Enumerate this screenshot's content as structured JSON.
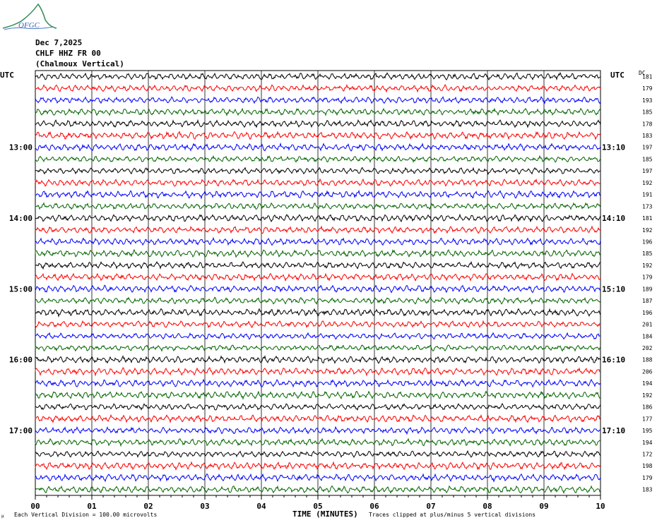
{
  "logo": {
    "text": "OFGC"
  },
  "header": {
    "date": "Dec 7,2025",
    "station": "CHLF HHZ FR 00",
    "location": "(Chalmoux Vertical)"
  },
  "left_label": "UTC",
  "right_label": "UTC",
  "dc_label": "DC",
  "footer": {
    "division": "Each Vertical Division =  100.00 microvolts",
    "xlabel": "TIME (MINUTES)",
    "clipping": "Traces clipped at plus/minus 5 vertical divisions",
    "corner_mark": "µ"
  },
  "colors": {
    "black": "#000000",
    "red": "#ff0000",
    "blue": "#0000ff",
    "green": "#006400",
    "grid": "#000000"
  },
  "chart_data": {
    "type": "line",
    "subtype": "helicorder",
    "x_ticks": [
      "00",
      "01",
      "02",
      "03",
      "04",
      "05",
      "06",
      "07",
      "08",
      "09",
      "10"
    ],
    "xlim": [
      0,
      10
    ],
    "left_hour_labels": [
      "13:00",
      "14:00",
      "15:00",
      "16:00",
      "17:00"
    ],
    "right_hour_labels": [
      "13:10",
      "14:10",
      "15:10",
      "16:10",
      "17:10"
    ],
    "trace_color_cycle": [
      "black",
      "red",
      "blue",
      "green"
    ],
    "trace_count": 36,
    "dc_offsets": [
      181,
      179,
      193,
      185,
      178,
      183,
      197,
      185,
      197,
      192,
      191,
      173,
      181,
      192,
      196,
      185,
      192,
      179,
      189,
      187,
      196,
      201,
      184,
      202,
      188,
      206,
      194,
      192,
      186,
      177,
      195,
      194,
      172,
      198,
      179,
      183
    ]
  }
}
